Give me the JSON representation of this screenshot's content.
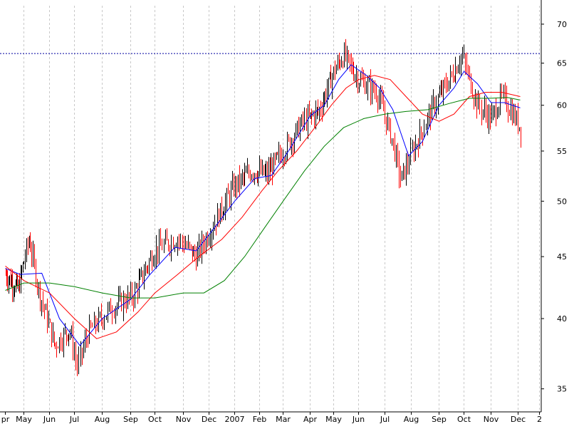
{
  "chart_data": {
    "type": "candlestick",
    "title": "",
    "xlabel": "",
    "ylabel": "",
    "scale": "log",
    "ylim": [
      33.5,
      72.5
    ],
    "y_ticks": [
      35,
      40,
      45,
      50,
      55,
      60,
      65,
      70
    ],
    "y_tick_labels": [
      "35",
      "40",
      "45",
      "50",
      "55",
      "60",
      "65",
      "70"
    ],
    "x_tick_labels": [
      "pr",
      "May",
      "Jun",
      "Jul",
      "Aug",
      "Sep",
      "Oct",
      "Nov",
      "Dec",
      "2007",
      "Feb",
      "Mar",
      "Apr",
      "May",
      "Jun",
      "Jul",
      "Aug",
      "Sep",
      "Oct",
      "Nov",
      "Dec",
      "2"
    ],
    "grid": true,
    "resistance_line": 66.2,
    "colors": {
      "up_bar": "#000000",
      "down_bar": "#ff0000",
      "ma_short": "#0000ff",
      "ma_medium": "#ff0000",
      "ma_long": "#008000",
      "resistance": "#0000a0",
      "grid": "#c8c8c8"
    },
    "price_path": [
      [
        0,
        43.5
      ],
      [
        0.7,
        42.3
      ],
      [
        1.2,
        46.5
      ],
      [
        1.6,
        42.0
      ],
      [
        2.2,
        38.0
      ],
      [
        2.8,
        39.2
      ],
      [
        3.1,
        36.5
      ],
      [
        3.5,
        39.0
      ],
      [
        4.3,
        40.8
      ],
      [
        5.1,
        41.8
      ],
      [
        6.0,
        45.6
      ],
      [
        6.8,
        46.6
      ],
      [
        7.5,
        45.0
      ],
      [
        8.2,
        48.0
      ],
      [
        9.0,
        51.5
      ],
      [
        9.7,
        53.0
      ],
      [
        10.3,
        52.6
      ],
      [
        11.0,
        55.0
      ],
      [
        11.7,
        58.0
      ],
      [
        12.4,
        59.5
      ],
      [
        13.0,
        64.0
      ],
      [
        13.4,
        66.0
      ],
      [
        14.0,
        63.0
      ],
      [
        14.7,
        61.5
      ],
      [
        15.3,
        56.0
      ],
      [
        15.6,
        52.0
      ],
      [
        16.2,
        56.0
      ],
      [
        16.8,
        60.0
      ],
      [
        17.6,
        64.0
      ],
      [
        17.9,
        66.0
      ],
      [
        18.5,
        60.0
      ],
      [
        19.0,
        58.5
      ],
      [
        19.4,
        61.0
      ],
      [
        19.8,
        59.0
      ],
      [
        20.1,
        57.5
      ]
    ],
    "series": [
      {
        "name": "",
        "style": "line",
        "color": "#0000ff",
        "points": [
          [
            0,
            44.0
          ],
          [
            0.8,
            43.5
          ],
          [
            1.7,
            43.6
          ],
          [
            2.4,
            40.0
          ],
          [
            3.2,
            38.0
          ],
          [
            4.0,
            40.0
          ],
          [
            5.0,
            41.5
          ],
          [
            5.8,
            43.5
          ],
          [
            6.7,
            45.8
          ],
          [
            7.5,
            45.5
          ],
          [
            8.2,
            47.5
          ],
          [
            9.0,
            50.0
          ],
          [
            9.8,
            52.2
          ],
          [
            10.5,
            52.5
          ],
          [
            11.2,
            55.0
          ],
          [
            12.0,
            58.8
          ],
          [
            12.6,
            60.0
          ],
          [
            13.2,
            63.0
          ],
          [
            13.7,
            64.8
          ],
          [
            14.3,
            63.5
          ],
          [
            14.8,
            62.0
          ],
          [
            15.3,
            59.5
          ],
          [
            15.9,
            54.5
          ],
          [
            16.4,
            56.0
          ],
          [
            17.0,
            60.0
          ],
          [
            17.6,
            62.0
          ],
          [
            18.0,
            64.0
          ],
          [
            18.5,
            62.5
          ],
          [
            19.0,
            60.3
          ],
          [
            19.5,
            60.3
          ],
          [
            20.1,
            59.7
          ]
        ]
      },
      {
        "name": "",
        "style": "line",
        "color": "#ff0000",
        "points": [
          [
            0,
            44.2
          ],
          [
            1.0,
            43.0
          ],
          [
            2.0,
            42.0
          ],
          [
            3.0,
            40.0
          ],
          [
            3.8,
            38.5
          ],
          [
            4.5,
            39.0
          ],
          [
            5.3,
            40.5
          ],
          [
            6.0,
            42.0
          ],
          [
            6.8,
            43.5
          ],
          [
            7.6,
            45.0
          ],
          [
            8.5,
            46.5
          ],
          [
            9.3,
            48.5
          ],
          [
            10.1,
            51.0
          ],
          [
            10.8,
            53.0
          ],
          [
            11.5,
            55.0
          ],
          [
            12.2,
            57.5
          ],
          [
            12.9,
            60.0
          ],
          [
            13.5,
            62.0
          ],
          [
            14.0,
            63.0
          ],
          [
            14.6,
            63.5
          ],
          [
            15.2,
            63.0
          ],
          [
            15.8,
            61.0
          ],
          [
            16.4,
            59.0
          ],
          [
            17.0,
            58.2
          ],
          [
            17.6,
            59.0
          ],
          [
            18.2,
            61.0
          ],
          [
            18.8,
            61.5
          ],
          [
            19.4,
            61.5
          ],
          [
            20.1,
            61.0
          ]
        ]
      },
      {
        "name": "",
        "style": "line",
        "color": "#008000",
        "points": [
          [
            0,
            42.2
          ],
          [
            1.0,
            42.8
          ],
          [
            2.0,
            42.8
          ],
          [
            3.0,
            42.5
          ],
          [
            4.0,
            42.0
          ],
          [
            5.0,
            41.6
          ],
          [
            6.0,
            41.6
          ],
          [
            7.0,
            42.0
          ],
          [
            7.8,
            42.0
          ],
          [
            8.6,
            43.0
          ],
          [
            9.4,
            45.0
          ],
          [
            10.2,
            47.5
          ],
          [
            11.0,
            50.0
          ],
          [
            11.8,
            53.0
          ],
          [
            12.6,
            55.5
          ],
          [
            13.4,
            57.5
          ],
          [
            14.2,
            58.5
          ],
          [
            15.0,
            59.0
          ],
          [
            15.8,
            59.3
          ],
          [
            16.6,
            59.5
          ],
          [
            17.4,
            60.2
          ],
          [
            18.2,
            60.8
          ],
          [
            19.0,
            60.8
          ],
          [
            19.6,
            60.9
          ],
          [
            20.1,
            60.6
          ]
        ]
      }
    ]
  }
}
